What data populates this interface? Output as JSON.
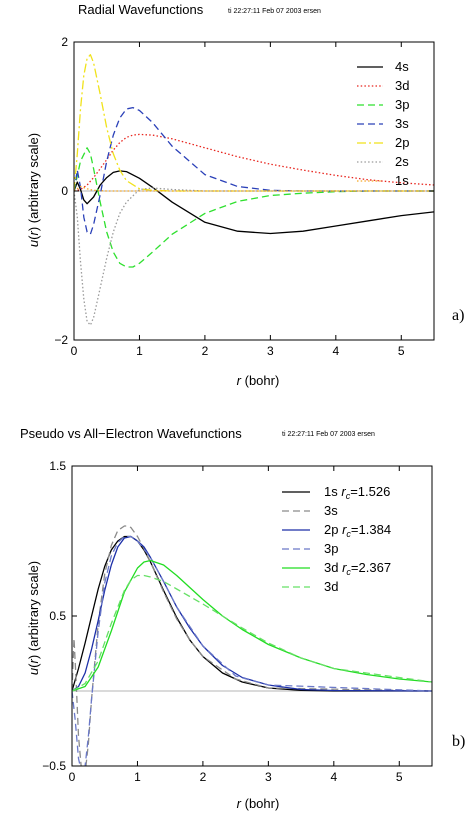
{
  "chart_data": [
    {
      "type": "line",
      "title": "Radial Wavefunctions",
      "stamp": "ti 22:27:11 Feb 07 2003 ersen",
      "xlabel": "r  (bohr)",
      "ylabel": "u(r)  (arbitrary scale)",
      "xlim": [
        0,
        5.5
      ],
      "ylim": [
        -2,
        2
      ],
      "xticks": [
        "0",
        "1",
        "2",
        "3",
        "4",
        "5"
      ],
      "xtick_values": [
        0,
        1,
        2,
        3,
        4,
        5
      ],
      "yticks": [
        "2",
        "0",
        "−2"
      ],
      "ytick_values": [
        2,
        0,
        -2
      ],
      "panel_label": "a)",
      "legend_position": "top-right",
      "zero_line": true,
      "series": [
        {
          "name": "4s",
          "color": "#000000",
          "dash": "solid",
          "x": [
            0,
            0.05,
            0.1,
            0.15,
            0.2,
            0.3,
            0.4,
            0.5,
            0.6,
            0.7,
            0.8,
            1.0,
            1.2,
            1.5,
            2.0,
            2.5,
            3.0,
            3.5,
            4.0,
            4.5,
            5.0,
            5.5
          ],
          "y": [
            0,
            0.12,
            0.02,
            -0.12,
            -0.17,
            -0.08,
            0.08,
            0.18,
            0.25,
            0.27,
            0.26,
            0.17,
            0.05,
            -0.15,
            -0.42,
            -0.54,
            -0.57,
            -0.54,
            -0.47,
            -0.4,
            -0.33,
            -0.28
          ]
        },
        {
          "name": "3d",
          "color": "#e8251e",
          "dash": "dotted",
          "x": [
            0,
            0.1,
            0.2,
            0.3,
            0.4,
            0.5,
            0.6,
            0.7,
            0.8,
            0.9,
            1.0,
            1.2,
            1.5,
            2.0,
            2.5,
            3.0,
            3.5,
            4.0,
            4.5,
            5.0,
            5.5
          ],
          "y": [
            0,
            0.02,
            0.08,
            0.18,
            0.3,
            0.42,
            0.55,
            0.65,
            0.72,
            0.75,
            0.76,
            0.75,
            0.7,
            0.58,
            0.46,
            0.36,
            0.28,
            0.21,
            0.15,
            0.11,
            0.08
          ]
        },
        {
          "name": "3p",
          "color": "#2fe02f",
          "dash": "dashed",
          "x": [
            0,
            0.1,
            0.2,
            0.25,
            0.3,
            0.4,
            0.5,
            0.6,
            0.7,
            0.8,
            0.9,
            1.0,
            1.2,
            1.5,
            2.0,
            2.5,
            3.0,
            3.5,
            4.0,
            4.5,
            5.0,
            5.5
          ],
          "y": [
            0,
            0.4,
            0.58,
            0.5,
            0.3,
            -0.15,
            -0.55,
            -0.82,
            -0.97,
            -1.02,
            -1.02,
            -0.97,
            -0.82,
            -0.58,
            -0.3,
            -0.14,
            -0.06,
            -0.03,
            -0.01,
            0,
            0,
            0
          ]
        },
        {
          "name": "3s",
          "color": "#2a40b8",
          "dash": "dashed",
          "x": [
            0,
            0.05,
            0.1,
            0.15,
            0.2,
            0.25,
            0.3,
            0.4,
            0.5,
            0.6,
            0.7,
            0.8,
            0.9,
            1.0,
            1.2,
            1.5,
            2.0,
            2.5,
            3.0,
            3.5,
            4.0,
            4.5,
            5.0,
            5.5
          ],
          "y": [
            0,
            0.28,
            0.05,
            -0.35,
            -0.55,
            -0.58,
            -0.45,
            -0.05,
            0.4,
            0.75,
            0.98,
            1.1,
            1.12,
            1.08,
            0.92,
            0.6,
            0.22,
            0.06,
            0.01,
            0,
            0,
            0,
            0,
            0
          ]
        },
        {
          "name": "2p",
          "color": "#f0e21a",
          "dash": "dashdot",
          "x": [
            0,
            0.05,
            0.1,
            0.15,
            0.2,
            0.25,
            0.3,
            0.4,
            0.5,
            0.6,
            0.7,
            0.8,
            1.0,
            1.2,
            1.5,
            2.0,
            5.5
          ],
          "y": [
            0,
            0.5,
            1.1,
            1.55,
            1.78,
            1.83,
            1.72,
            1.3,
            0.85,
            0.5,
            0.28,
            0.14,
            0.03,
            0.01,
            0,
            0,
            0
          ]
        },
        {
          "name": "2s",
          "color": "#9a9a9a",
          "dash": "dotted",
          "x": [
            0,
            0.05,
            0.1,
            0.15,
            0.2,
            0.25,
            0.3,
            0.4,
            0.5,
            0.6,
            0.7,
            0.8,
            1.0,
            1.2,
            1.5,
            2.0,
            2.5,
            3.0,
            5.5
          ],
          "y": [
            0,
            -0.35,
            -0.95,
            -1.45,
            -1.75,
            -1.8,
            -1.7,
            -1.3,
            -0.9,
            -0.55,
            -0.3,
            -0.15,
            0.02,
            0.04,
            0.02,
            0,
            0,
            0,
            0
          ]
        },
        {
          "name": "1s",
          "color": "#f5a623",
          "dash": "dotted",
          "x": [
            0,
            0.1,
            0.2,
            0.3,
            0.5,
            1.0,
            5.5
          ],
          "y": [
            0,
            0.06,
            0.03,
            0.01,
            0,
            0,
            0
          ]
        }
      ]
    },
    {
      "type": "line",
      "title": "Pseudo vs All−Electron Wavefunctions",
      "stamp": "ti 22:27:11 Feb 07 2003 ersen",
      "xlabel": "r  (bohr)",
      "ylabel": "u(r)  (arbitrary scale)",
      "xlim": [
        0,
        5.5
      ],
      "ylim": [
        -0.5,
        1.5
      ],
      "xticks": [
        "0",
        "1",
        "2",
        "3",
        "4",
        "5"
      ],
      "xtick_values": [
        0,
        1,
        2,
        3,
        4,
        5
      ],
      "yticks": [
        "1.5",
        "0.5",
        "−0.5"
      ],
      "ytick_values": [
        1.5,
        0.5,
        -0.5
      ],
      "panel_label": "b)",
      "legend_position": "top-right",
      "zero_line": true,
      "series": [
        {
          "name": "1s",
          "rc_label": "r",
          "rc_sub": "c",
          "rc_value": "=1.526",
          "color": "#000000",
          "dash": "solid",
          "x": [
            0,
            0.1,
            0.2,
            0.3,
            0.4,
            0.5,
            0.6,
            0.7,
            0.8,
            0.9,
            1.0,
            1.1,
            1.2,
            1.4,
            1.6,
            1.8,
            2.0,
            2.3,
            2.6,
            3.0,
            3.5,
            4.0,
            5.5
          ],
          "y": [
            0,
            0.15,
            0.32,
            0.5,
            0.68,
            0.83,
            0.94,
            1.0,
            1.03,
            1.03,
            1.0,
            0.94,
            0.86,
            0.67,
            0.49,
            0.34,
            0.23,
            0.12,
            0.06,
            0.02,
            0.005,
            0,
            0
          ]
        },
        {
          "name": "3s",
          "color": "#8a8a8a",
          "dash": "dashed",
          "x": [
            0,
            0.03,
            0.06,
            0.1,
            0.15,
            0.2,
            0.25,
            0.3,
            0.4,
            0.5,
            0.6,
            0.7,
            0.8,
            0.85,
            0.9,
            1.0,
            1.1,
            1.2,
            1.4,
            1.6,
            1.8,
            2.0,
            2.5,
            3.0,
            5.5
          ],
          "y": [
            0,
            0.35,
            0.1,
            -0.3,
            -0.55,
            -0.55,
            -0.35,
            -0.05,
            0.45,
            0.78,
            0.97,
            1.07,
            1.1,
            1.1,
            1.09,
            1.03,
            0.95,
            0.86,
            0.66,
            0.48,
            0.34,
            0.23,
            0.08,
            0.02,
            0
          ]
        },
        {
          "name": "2p",
          "rc_label": "r",
          "rc_sub": "c",
          "rc_value": "=1.384",
          "color": "#1c2fa8",
          "dash": "solid",
          "x": [
            0,
            0.1,
            0.2,
            0.3,
            0.4,
            0.5,
            0.6,
            0.7,
            0.8,
            0.9,
            1.0,
            1.1,
            1.2,
            1.4,
            1.6,
            1.8,
            2.0,
            2.3,
            2.6,
            3.0,
            3.5,
            4.0,
            5.5
          ],
          "y": [
            0,
            0.03,
            0.12,
            0.28,
            0.47,
            0.67,
            0.84,
            0.96,
            1.02,
            1.03,
            1.0,
            0.96,
            0.89,
            0.73,
            0.56,
            0.42,
            0.3,
            0.17,
            0.09,
            0.04,
            0.01,
            0.003,
            0
          ]
        },
        {
          "name": "3p",
          "color": "#6a78c8",
          "dash": "dashed",
          "x": [
            0,
            0.05,
            0.1,
            0.15,
            0.2,
            0.25,
            0.3,
            0.4,
            0.5,
            0.6,
            0.7,
            0.8,
            0.9,
            1.0,
            1.2,
            1.4,
            1.6,
            2.0,
            2.5,
            3.0,
            5.5
          ],
          "y": [
            0,
            -0.2,
            -0.45,
            -0.55,
            -0.5,
            -0.3,
            -0.05,
            0.4,
            0.72,
            0.9,
            0.99,
            1.03,
            1.03,
            1.0,
            0.89,
            0.73,
            0.56,
            0.3,
            0.1,
            0.04,
            0
          ]
        },
        {
          "name": "3d",
          "rc_label": "r",
          "rc_sub": "c",
          "rc_value": "=2.367",
          "color": "#22dd22",
          "dash": "solid",
          "x": [
            0,
            0.2,
            0.4,
            0.6,
            0.8,
            1.0,
            1.1,
            1.2,
            1.4,
            1.6,
            1.8,
            2.0,
            2.3,
            2.6,
            3.0,
            3.5,
            4.0,
            4.5,
            5.0,
            5.5
          ],
          "y": [
            0,
            0.03,
            0.16,
            0.4,
            0.66,
            0.82,
            0.86,
            0.87,
            0.84,
            0.77,
            0.69,
            0.61,
            0.5,
            0.41,
            0.31,
            0.22,
            0.15,
            0.11,
            0.08,
            0.06
          ]
        },
        {
          "name": "3d",
          "color": "#66e066",
          "dash": "dashed",
          "x": [
            0,
            0.2,
            0.4,
            0.6,
            0.8,
            0.9,
            1.0,
            1.1,
            1.2,
            1.4,
            1.6,
            1.8,
            2.0,
            2.3,
            2.6,
            3.0,
            3.5,
            4.0,
            5.5
          ],
          "y": [
            0,
            0.05,
            0.2,
            0.45,
            0.67,
            0.74,
            0.77,
            0.77,
            0.76,
            0.73,
            0.68,
            0.63,
            0.58,
            0.5,
            0.42,
            0.32,
            0.22,
            0.15,
            0.06
          ]
        }
      ]
    }
  ]
}
